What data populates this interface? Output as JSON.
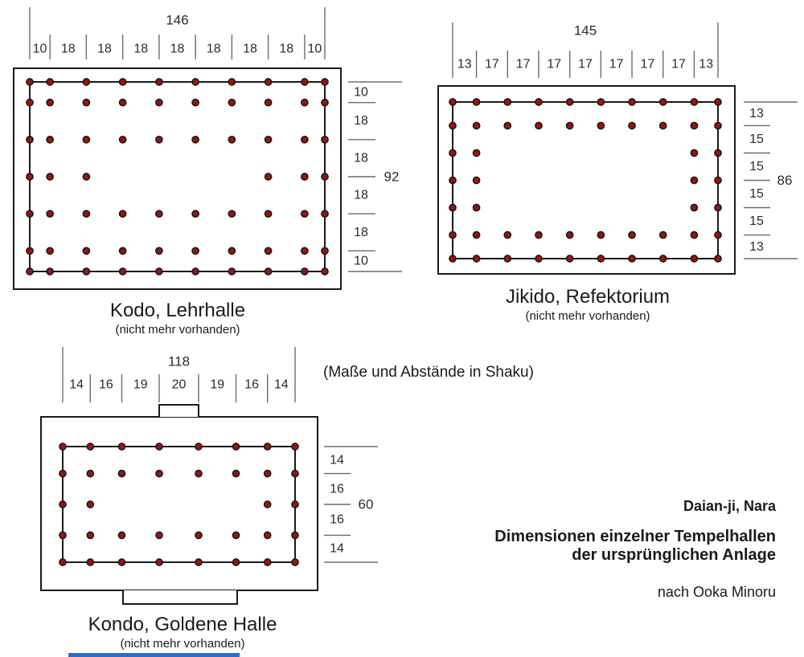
{
  "figure": {
    "note": "(Maße und Abstände in Shaku)",
    "site": "Daian-ji, Nara",
    "title_line1": "Dimensionen einzelner Tempelhallen",
    "title_line2": "der ursprünglichen Anlage",
    "credit": "nach Ooka Minoru"
  },
  "colors": {
    "dot_fill": "#971414",
    "dot_stroke": "#151515",
    "wall_line": "#1a1a1a",
    "tick_line": "#6b6b6b",
    "text": "#1a1a1a",
    "highlight_bar": "#2f6acc"
  },
  "halls": [
    {
      "id": "kodo",
      "name": "Kodo, Lehrhalle",
      "subtitle": "(nicht mehr vorhanden)",
      "total_width": 146,
      "total_height": 92,
      "col_segments": [
        10,
        18,
        18,
        18,
        18,
        18,
        18,
        18,
        10
      ],
      "row_segments": [
        10,
        18,
        18,
        18,
        18,
        10
      ],
      "dot_rows": [
        [
          1,
          2,
          3,
          4,
          5,
          6,
          7,
          8,
          9,
          10
        ],
        [
          1,
          2,
          3,
          4,
          5,
          6,
          7,
          8,
          9,
          10
        ],
        [
          1,
          2,
          3,
          4,
          5,
          6,
          7,
          8,
          9,
          10
        ],
        [
          1,
          2,
          3,
          8,
          9,
          10
        ],
        [
          1,
          2,
          3,
          4,
          5,
          6,
          7,
          8,
          9,
          10
        ],
        [
          1,
          2,
          3,
          4,
          5,
          6,
          7,
          8,
          9,
          10
        ],
        [
          1,
          2,
          3,
          4,
          5,
          6,
          7,
          8,
          9,
          10
        ]
      ]
    },
    {
      "id": "jikido",
      "name": "Jikido, Refektorium",
      "subtitle": "(nicht mehr vorhanden)",
      "total_width": 145,
      "total_height": 86,
      "col_segments": [
        13,
        17,
        17,
        17,
        17,
        17,
        17,
        17,
        13
      ],
      "row_segments": [
        13,
        15,
        15,
        15,
        15,
        13
      ],
      "dot_rows": [
        [
          1,
          2,
          3,
          4,
          5,
          6,
          7,
          8,
          9,
          10
        ],
        [
          1,
          2,
          3,
          4,
          5,
          6,
          7,
          8,
          9,
          10
        ],
        [
          1,
          2,
          9,
          10
        ],
        [
          1,
          2,
          9,
          10
        ],
        [
          1,
          2,
          9,
          10
        ],
        [
          1,
          2,
          3,
          4,
          5,
          6,
          7,
          8,
          9,
          10
        ],
        [
          1,
          2,
          3,
          4,
          5,
          6,
          7,
          8,
          9,
          10
        ]
      ]
    },
    {
      "id": "kondo",
      "name": "Kondo, Goldene Halle",
      "subtitle": "(nicht mehr vorhanden)",
      "total_width": 118,
      "total_height": 60,
      "col_segments": [
        14,
        16,
        19,
        20,
        19,
        16,
        14
      ],
      "row_segments": [
        14,
        16,
        16,
        14
      ],
      "dot_rows": [
        [
          1,
          2,
          3,
          4,
          5,
          6,
          7,
          8
        ],
        [
          1,
          2,
          3,
          4,
          5,
          6,
          7,
          8
        ],
        [
          1,
          2,
          7,
          8
        ],
        [
          1,
          2,
          3,
          4,
          5,
          6,
          7,
          8
        ],
        [
          1,
          2,
          3,
          4,
          5,
          6,
          7,
          8
        ]
      ]
    }
  ]
}
